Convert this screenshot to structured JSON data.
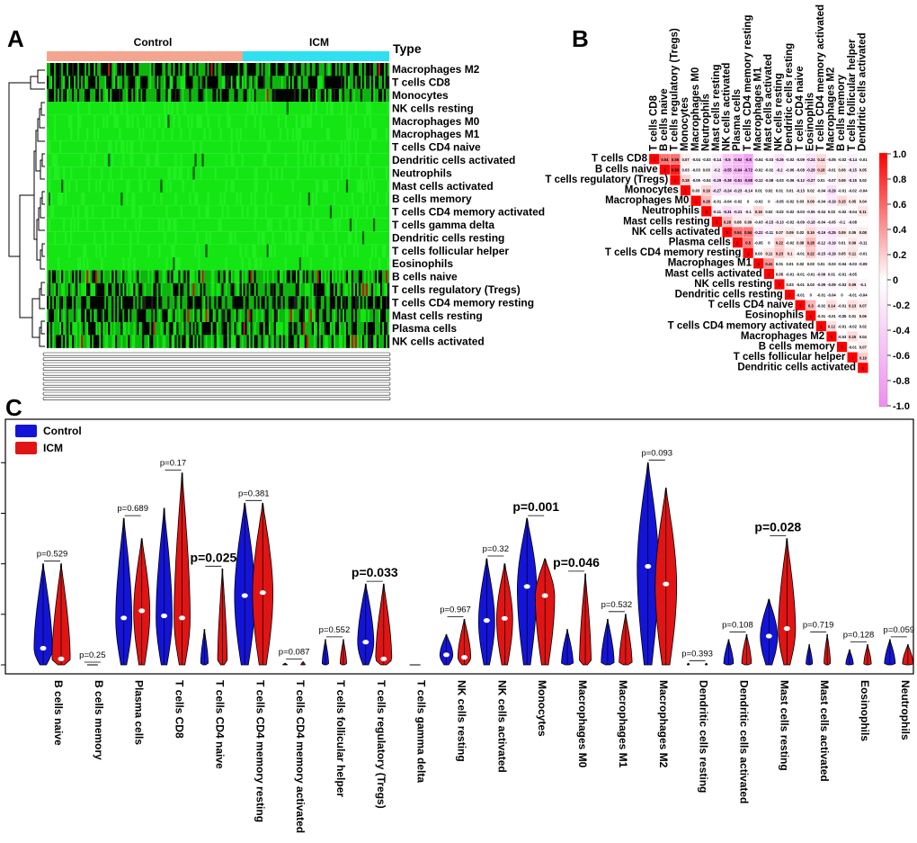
{
  "panels": {
    "a": "A",
    "b": "B",
    "c": "C"
  },
  "heatmap": {
    "type_label": "Type",
    "groups": [
      {
        "name": "Control",
        "color": "#f4a58f"
      },
      {
        "name": "ICM",
        "color": "#2fe0f0"
      }
    ],
    "rows": [
      "Macrophages M2",
      "T cells CD8",
      "Monocytes",
      "NK cells resting",
      "Macrophages M0",
      "Macrophages M1",
      "T cells CD4 naive",
      "Dendritic cells activated",
      "Neutrophils",
      "Mast cells activated",
      "B cells memory",
      "T cells CD4 memory activated",
      "T cells gamma delta",
      "Dendritic cells resting",
      "T cells follicular helper",
      "Eosinophils",
      "B cells naive",
      "T cells regulatory (Tregs)",
      "T cells CD4 memory resting",
      "Mast cells resting",
      "Plasma cells",
      "NK cells activated"
    ],
    "row_intensity": [
      0.55,
      0.45,
      0.5,
      0.02,
      0.04,
      0.04,
      0.02,
      0.02,
      0.02,
      0.02,
      0.02,
      0.02,
      0.02,
      0.02,
      0.02,
      0.02,
      0.25,
      0.35,
      0.6,
      0.35,
      0.4,
      0.35
    ]
  },
  "corr": {
    "labels": [
      "T cells CD8",
      "B cells naive",
      "T cells regulatory (Tregs)",
      "Monocytes",
      "Macrophages M0",
      "Neutrophils",
      "Mast cells resting",
      "NK cells activated",
      "Plasma cells",
      "T cells CD4 memory resting",
      "Macrophages M1",
      "Mast cells activated",
      "NK cells resting",
      "Dendritic cells resting",
      "T cells CD4 naive",
      "Eosinophils",
      "T cells CD4 memory activated",
      "Macrophages M2",
      "B cells memory",
      "T cells follicular helper",
      "Dendritic cells activated"
    ],
    "upper": [
      [
        1,
        0.54,
        0.56,
        0.07,
        -0.04,
        -0.03,
        -0.14,
        -0.5,
        -0.62,
        -0.8,
        -0.04,
        -0.03,
        -0.26,
        -0.02,
        -0.09,
        -0.24,
        0.14,
        -0.05,
        -0.02,
        -0.14,
        -0.01
      ],
      [
        1,
        0.88,
        0.03,
        -0.03,
        0.03,
        -0.2,
        -0.55,
        -0.64,
        -0.72,
        -0.02,
        -0.02,
        -0.2,
        -0.06,
        -0.08,
        -0.28,
        0.18,
        -0.01,
        0.06,
        -0.15,
        0.05
      ],
      [
        1,
        0.18,
        -0.05,
        -0.04,
        -0.29,
        -0.38,
        -0.51,
        -0.68,
        -0.12,
        -0.08,
        -0.03,
        -0.06,
        -0.12,
        -0.27,
        0.01,
        -0.07,
        0.06,
        -0.15,
        0.02
      ],
      [
        1,
        0.03,
        0.19,
        -0.27,
        -0.24,
        -0.23,
        -0.14,
        0.01,
        0.02,
        0.01,
        0.01,
        -0.13,
        0.02,
        -0.04,
        -0.29,
        -0.01,
        -0.02,
        -0.04
      ],
      [
        1,
        0.28,
        -0.01,
        -0.04,
        -0.02,
        0,
        -0.02,
        0,
        -0.05,
        -0.02,
        0.03,
        0.09,
        -0.04,
        -0.19,
        0.15,
        0.05,
        0.04
      ],
      [
        1,
        -0.11,
        -0.31,
        -0.21,
        -0.1,
        0.16,
        0.02,
        -0.02,
        -0.02,
        -0.03,
        -0.06,
        -0.04,
        0.02,
        -0.02,
        -0.04,
        0.11
      ],
      [
        1,
        0.28,
        0.08,
        0.09,
        -0.03,
        -0.15,
        -0.13,
        -0.02,
        -0.09,
        -0.18,
        -0.04,
        -0.05,
        -0.1,
        -0.08
      ],
      [
        1,
        0.54,
        0.54,
        -0.22,
        -0.11,
        0.07,
        0.09,
        0.02,
        0.16,
        -0.19,
        -0.25,
        0.09,
        0.05,
        0.08
      ],
      [
        1,
        0.5,
        -0.05,
        0,
        0.22,
        -0.02,
        0.08,
        0.28,
        -0.12,
        -0.19,
        0.01,
        0.09,
        -0.11
      ],
      [
        1,
        0.03,
        0.11,
        0.23,
        0.1,
        -0.01,
        0.22,
        -0.15,
        -0.19,
        0.05,
        0.11,
        -0.01
      ],
      [
        1,
        0.41,
        0.01,
        0.01,
        0.02,
        0.03,
        0.01,
        -0.03,
        -0.04,
        -0.03,
        -0.09
      ],
      [
        1,
        0.05,
        -0.01,
        -0.01,
        -0.01,
        -0.09,
        0.01,
        -0.01,
        -0.05
      ],
      [
        1,
        0.03,
        -0.01,
        0.03,
        -0.09,
        -0.09,
        -0.03,
        0.09,
        -0.1
      ],
      [
        1,
        -0.01,
        0,
        -0.01,
        -0.04,
        0,
        -0.01,
        -0.04
      ],
      [
        1,
        0.3,
        -0.02,
        0.14,
        -0.01,
        0.13,
        0.07
      ],
      [
        1,
        -0.01,
        -0.01,
        -0.05,
        0.01,
        0.06
      ],
      [
        1,
        0.12,
        -0.01,
        -0.02,
        0.02
      ],
      [
        1,
        -0.03,
        0.15,
        0.04
      ],
      [
        1,
        -0.01,
        0.07
      ],
      [
        1,
        0.19
      ],
      [
        1
      ]
    ],
    "scale_ticks": [
      "1.0",
      "0.8",
      "0.6",
      "0.4",
      "0.2",
      "0",
      "-0.2",
      "-0.4",
      "-0.6",
      "-0.8",
      "-1.0"
    ]
  },
  "violin": {
    "legend": [
      {
        "name": "Control",
        "color": "#1414d8"
      },
      {
        "name": "ICM",
        "color": "#e01414"
      }
    ],
    "items": [
      {
        "name": "B cells naive",
        "p": "p=0.529",
        "bold": false
      },
      {
        "name": "B cells memory",
        "p": "p=0.25",
        "bold": false
      },
      {
        "name": "Plasma cells",
        "p": "p=0.689",
        "bold": false
      },
      {
        "name": "T cells CD8",
        "p": "p=0.17",
        "bold": false
      },
      {
        "name": "T cells CD4 naive",
        "p": "p=0.025",
        "bold": true
      },
      {
        "name": "T cells CD4 memory resting",
        "p": "p=0.381",
        "bold": false
      },
      {
        "name": "T cells CD4 memory activated",
        "p": "p=0.087",
        "bold": false
      },
      {
        "name": "T cells follicular helper",
        "p": "p=0.552",
        "bold": false
      },
      {
        "name": "T cells regulatory (Tregs)",
        "p": "p=0.033",
        "bold": true
      },
      {
        "name": "T cells gamma delta",
        "p": "",
        "bold": false
      },
      {
        "name": "NK cells resting",
        "p": "p=0.967",
        "bold": false
      },
      {
        "name": "NK cells activated",
        "p": "p=0.32",
        "bold": false
      },
      {
        "name": "Monocytes",
        "p": "p=0.001",
        "bold": true
      },
      {
        "name": "Macrophages M0",
        "p": "p=0.046",
        "bold": true
      },
      {
        "name": "Macrophages M1",
        "p": "p=0.532",
        "bold": false
      },
      {
        "name": "Macrophages M2",
        "p": "p=0.093",
        "bold": false
      },
      {
        "name": "Dendritic cells resting",
        "p": "p=0.393",
        "bold": false
      },
      {
        "name": "Dendritic cells activated",
        "p": "p=0.108",
        "bold": false
      },
      {
        "name": "Mast cells resting",
        "p": "p=0.028",
        "bold": true
      },
      {
        "name": "Mast cells activated",
        "p": "p=0.719",
        "bold": false
      },
      {
        "name": "Eosinophils",
        "p": "p=0.128",
        "bold": false
      },
      {
        "name": "Neutrophils",
        "p": "p=0.059",
        "bold": false
      }
    ],
    "ctrl_max": [
      0.2,
      0.01,
      0.29,
      0.31,
      0.07,
      0.32,
      0.003,
      0.05,
      0.16,
      0,
      0.06,
      0.21,
      0.29,
      0.07,
      0.09,
      0.4,
      0.003,
      0.05,
      0.13,
      0.04,
      0.03,
      0.05
    ],
    "icm_max": [
      0.2,
      0.01,
      0.25,
      0.38,
      0.19,
      0.32,
      0.006,
      0.05,
      0.16,
      0,
      0.09,
      0.2,
      0.21,
      0.18,
      0.1,
      0.35,
      0.003,
      0.06,
      0.25,
      0.06,
      0.04,
      0.04
    ],
    "ctrl_med": [
      0.033,
      0,
      0.093,
      0.097,
      0,
      0.137,
      0,
      0,
      0.045,
      0,
      0.02,
      0.088,
      0.155,
      0,
      0.005,
      0.195,
      0,
      0.002,
      0.057,
      0,
      0,
      0.002
    ],
    "icm_med": [
      0.012,
      0,
      0.107,
      0.093,
      0,
      0.143,
      0,
      0,
      0.012,
      0,
      0.015,
      0.092,
      0.137,
      0,
      0.003,
      0.16,
      0,
      0.002,
      0.072,
      0,
      0,
      0.002
    ],
    "ctrl_top": [
      0.2,
      0,
      0.29,
      0.31,
      0.07,
      0.32,
      0.003,
      0.05,
      0.16,
      0,
      0.06,
      0.21,
      0.29,
      0.07,
      0.09,
      0.4,
      0.003,
      0.05,
      0.13,
      0.04,
      0.03,
      0.05
    ],
    "icm_top": [
      0.2,
      0,
      0.25,
      0.38,
      0.19,
      0.32,
      0.006,
      0.05,
      0.16,
      0,
      0.09,
      0.2,
      0.21,
      0.18,
      0.1,
      0.35,
      0.003,
      0.06,
      0.25,
      0.06,
      0.04,
      0.04
    ],
    "ctrl_w": [
      0.85,
      0,
      0.75,
      0.75,
      0.35,
      0.95,
      0.2,
      0.3,
      0.75,
      0,
      0.6,
      0.75,
      0.9,
      0.55,
      0.6,
      1.0,
      0.1,
      0.45,
      0.8,
      0.3,
      0.35,
      0.5
    ],
    "icm_w": [
      0.85,
      0,
      0.75,
      0.75,
      0.45,
      0.95,
      0.2,
      0.3,
      0.75,
      0,
      0.6,
      0.75,
      0.9,
      0.55,
      0.6,
      1.0,
      0.1,
      0.45,
      0.8,
      0.3,
      0.35,
      0.5
    ],
    "ylim": [
      0,
      0.47
    ]
  }
}
